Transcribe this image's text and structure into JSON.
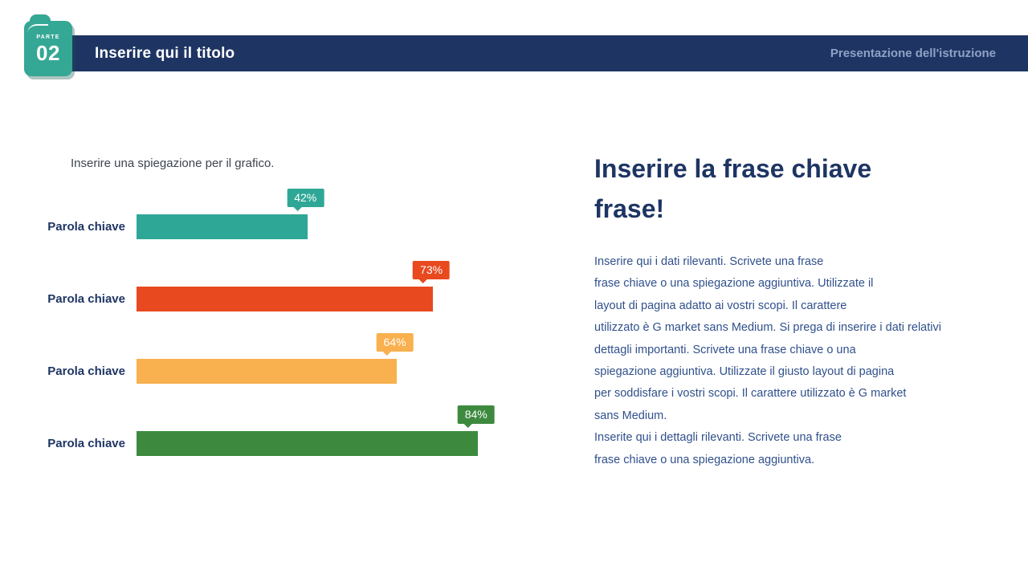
{
  "slide": {
    "badge": {
      "kicker": "PARTE",
      "number": "02"
    },
    "header": {
      "title": "Inserire qui il titolo",
      "subtitle": "Presentazione dell'istruzione"
    },
    "key_message": {
      "title": "Inserire la frase chiave\nfrase!",
      "body": "Inserire qui i dati rilevanti. Scrivete una frase\nfrase chiave o una spiegazione aggiuntiva. Utilizzate il\nlayout di pagina adatto ai vostri scopi. Il carattere\nutilizzato è G market sans Medium. Si prega di inserire i dati relativi\ndettagli importanti. Scrivete una frase chiave o una\nspiegazione aggiuntiva. Utilizzate il giusto layout di pagina\nper soddisfare i vostri scopi. Il carattere utilizzato è G market\nsans Medium.\nInserite qui i dettagli rilevanti. Scrivete una frase\nfrase chiave o una spiegazione aggiuntiva."
    },
    "colors": {
      "navy": "#1e3563",
      "header_subtitle": "#8fa2c6",
      "badge_teal": "#35a795"
    }
  },
  "chart_data": {
    "type": "bar",
    "orientation": "horizontal",
    "caption": "Inserire una spiegazione per il grafico.",
    "categories": [
      "Parola chiave",
      "Parola chiave",
      "Parola chiave",
      "Parola chiave"
    ],
    "values": [
      42,
      73,
      64,
      84
    ],
    "value_labels": [
      "42%",
      "73%",
      "64%",
      "84%"
    ],
    "unit": "%",
    "colors": [
      "#2fa796",
      "#e8491f",
      "#f9b04e",
      "#3d8a3f"
    ],
    "xlim": [
      0,
      100
    ],
    "grid": false,
    "legend": false
  }
}
